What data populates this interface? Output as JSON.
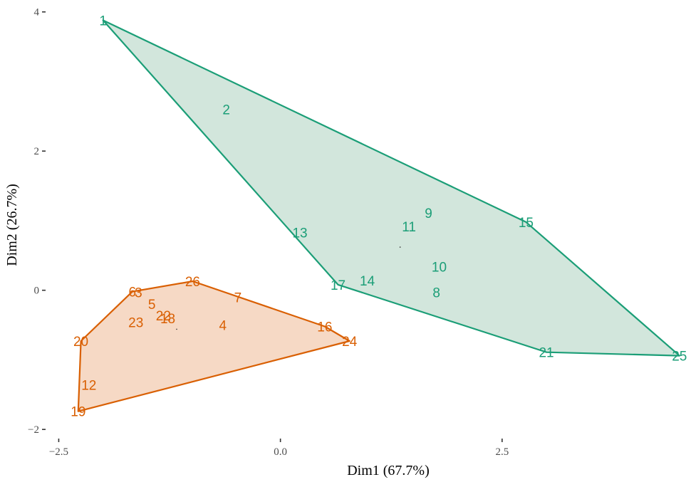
{
  "chart_data": {
    "type": "scatter",
    "xlabel": "Dim1 (67.7%)",
    "ylabel": "Dim2 (26.7%)",
    "xlim": [
      -2.6,
      4.55
    ],
    "ylim": [
      -2.07,
      4.12
    ],
    "x_ticks": [
      -2.5,
      0.0,
      2.5
    ],
    "x_tick_labels": [
      "−2.5",
      "0.0",
      "2.5"
    ],
    "y_ticks": [
      -2,
      0,
      2,
      4
    ],
    "y_tick_labels": [
      "−2",
      "0",
      "2",
      "4"
    ],
    "grid": false,
    "series": [
      {
        "color": "#1b9e77",
        "fill": "#d2e6dc",
        "points": [
          {
            "label": "1",
            "x": -2.0,
            "y": 3.88
          },
          {
            "label": "2",
            "x": -0.61,
            "y": 2.6
          },
          {
            "label": "8",
            "x": 1.76,
            "y": -0.03
          },
          {
            "label": "9",
            "x": 1.67,
            "y": 1.11
          },
          {
            "label": "10",
            "x": 1.79,
            "y": 0.34
          },
          {
            "label": "11",
            "x": 1.45,
            "y": 0.92
          },
          {
            "label": "13",
            "x": 0.22,
            "y": 0.83
          },
          {
            "label": "14",
            "x": 0.98,
            "y": 0.14
          },
          {
            "label": "15",
            "x": 2.77,
            "y": 0.98
          },
          {
            "label": "17",
            "x": 0.65,
            "y": 0.08
          },
          {
            "label": "21",
            "x": 3.0,
            "y": -0.89
          },
          {
            "label": "25",
            "x": 4.5,
            "y": -0.94
          }
        ],
        "hull": [
          "1",
          "15",
          "25",
          "21",
          "17"
        ],
        "centroid": [
          1.35,
          0.62
        ]
      },
      {
        "color": "#d95f02",
        "fill": "#f6d9c5",
        "points": [
          {
            "label": "3",
            "x": -1.6,
            "y": -0.03
          },
          {
            "label": "4",
            "x": -0.65,
            "y": -0.5
          },
          {
            "label": "5",
            "x": -1.45,
            "y": -0.2
          },
          {
            "label": "6",
            "x": -1.67,
            "y": -0.02
          },
          {
            "label": "7",
            "x": -0.48,
            "y": -0.1
          },
          {
            "label": "12",
            "x": -2.16,
            "y": -1.36
          },
          {
            "label": "16",
            "x": 0.5,
            "y": -0.52
          },
          {
            "label": "18",
            "x": -1.27,
            "y": -0.4
          },
          {
            "label": "19",
            "x": -2.28,
            "y": -1.74
          },
          {
            "label": "20",
            "x": -2.25,
            "y": -0.73
          },
          {
            "label": "22",
            "x": -1.32,
            "y": -0.36
          },
          {
            "label": "23",
            "x": -1.63,
            "y": -0.46
          },
          {
            "label": "24",
            "x": 0.78,
            "y": -0.73
          },
          {
            "label": "26",
            "x": -0.99,
            "y": 0.13
          }
        ],
        "hull": [
          "6",
          "26",
          "16",
          "24",
          "19",
          "20"
        ],
        "centroid": [
          -1.17,
          -0.56
        ]
      }
    ]
  }
}
